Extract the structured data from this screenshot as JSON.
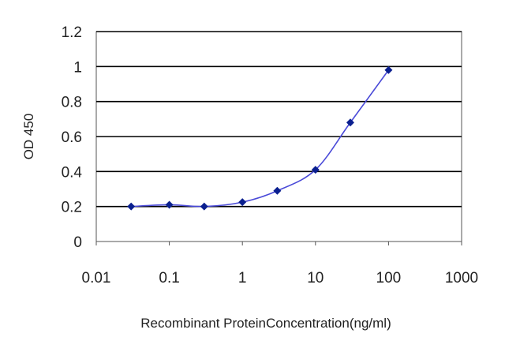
{
  "chart_data": {
    "type": "line",
    "title": "",
    "xlabel": "Recombinant ProteinConcentration(ng/ml)",
    "ylabel": "OD 450",
    "x_scale": "log",
    "xlim": [
      0.01,
      1000
    ],
    "ylim": [
      0,
      1.2
    ],
    "x_ticks": [
      "0.01",
      "0.1",
      "1",
      "10",
      "100",
      "1000"
    ],
    "y_ticks": [
      "0",
      "0.2",
      "0.4",
      "0.6",
      "0.8",
      "1",
      "1.2"
    ],
    "grid": "horizontal",
    "legend": "none",
    "series": [
      {
        "x": [
          0.03,
          0.1,
          0.3,
          1,
          3,
          10,
          30,
          100
        ],
        "values": [
          0.2,
          0.21,
          0.2,
          0.225,
          0.29,
          0.41,
          0.68,
          0.98
        ]
      }
    ],
    "colors": {
      "line": "#4a4ad8",
      "marker": "#0a1f8f",
      "grid": "#000000",
      "frame": "#555555"
    }
  }
}
